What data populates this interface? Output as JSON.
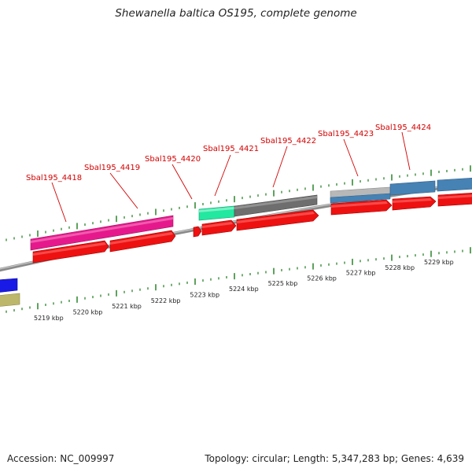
{
  "genome": {
    "title": "Shewanella baltica OS195, complete genome",
    "accession": "Accession: NC_009997",
    "stats": "Topology: circular; Length: 5,347,283 bp; Genes: 4,639"
  },
  "axis": {
    "unit": "kbp",
    "labels": [
      "5219 kbp",
      "5220 kbp",
      "5221 kbp",
      "5222 kbp",
      "5223 kbp",
      "5224 kbp",
      "5225 kbp",
      "5226 kbp",
      "5227 kbp",
      "5228 kbp",
      "5229 kbp"
    ]
  },
  "colors": {
    "cds": "#ee1111",
    "pink": "#e6198c",
    "green": "#22e8a0",
    "dark_gray": "#6e6e6e",
    "light_gray": "#b8b8b8",
    "steel_blue": "#4682b4",
    "blue": "#1a1ae6",
    "khaki": "#bdb76b",
    "tick": "#1a7a1a",
    "label": "#d40000"
  },
  "gene_labels": [
    "Sbal195_4418",
    "Sbal195_4419",
    "Sbal195_4420",
    "Sbal195_4421",
    "Sbal195_4422",
    "Sbal195_4423",
    "Sbal195_4424"
  ]
}
